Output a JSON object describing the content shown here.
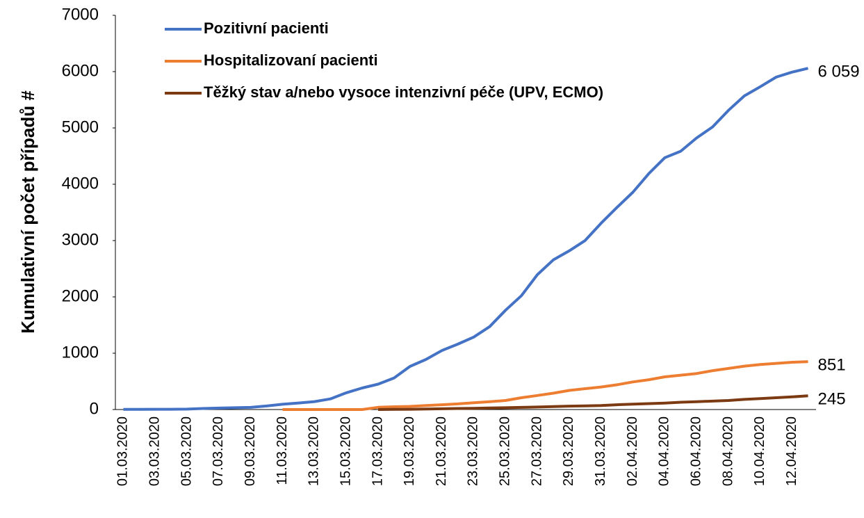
{
  "chart_data": {
    "type": "line",
    "ylabel": "Kumulativní počet případů #",
    "categories": [
      "01.03.2020",
      null,
      "03.03.2020",
      null,
      "05.03.2020",
      null,
      "07.03.2020",
      null,
      "09.03.2020",
      null,
      "11.03.2020",
      null,
      "13.03.2020",
      null,
      "15.03.2020",
      null,
      "17.03.2020",
      null,
      "19.03.2020",
      null,
      "21.03.2020",
      null,
      "23.03.2020",
      null,
      "25.03.2020",
      null,
      "27.03.2020",
      null,
      "29.03.2020",
      null,
      "31.03.2020",
      null,
      "02.04.2020",
      null,
      "04.04.2020",
      null,
      "06.04.2020",
      null,
      "08.04.2020",
      null,
      "10.04.2020",
      null,
      "12.04.2020",
      null
    ],
    "series": [
      {
        "name": "Pozitivní pacienti",
        "color": "#4472c4",
        "values": [
          3,
          3,
          5,
          5,
          8,
          19,
          26,
          32,
          38,
          63,
          94,
          116,
          141,
          189,
          298,
          383,
          450,
          560,
          765,
          889,
          1047,
          1161,
          1287,
          1472,
          1763,
          2022,
          2395,
          2657,
          2817,
          3001,
          3308,
          3589,
          3858,
          4190,
          4472,
          4587,
          4822,
          5017,
          5312,
          5569,
          5732,
          5902,
          5991,
          6059
        ],
        "value_labels": [
          null,
          null,
          null,
          null,
          null,
          null,
          null,
          null,
          null,
          null,
          null,
          null,
          null,
          null,
          null,
          null,
          null,
          null,
          null,
          null,
          null,
          null,
          null,
          null,
          null,
          null,
          null,
          null,
          null,
          null,
          null,
          null,
          null,
          null,
          null,
          null,
          null,
          null,
          null,
          null,
          null,
          null,
          null,
          "6 059"
        ]
      },
      {
        "name": "Hospitalizovaní pacienti",
        "color": "#ed7d31",
        "values": [
          null,
          null,
          null,
          null,
          null,
          null,
          null,
          null,
          null,
          null,
          0,
          0,
          0,
          0,
          0,
          0,
          40,
          50,
          55,
          70,
          85,
          100,
          120,
          140,
          160,
          210,
          250,
          290,
          340,
          370,
          400,
          440,
          490,
          530,
          580,
          610,
          640,
          690,
          730,
          770,
          800,
          820,
          840,
          851
        ],
        "value_labels": [
          null,
          null,
          null,
          null,
          null,
          null,
          null,
          null,
          null,
          null,
          null,
          null,
          null,
          null,
          null,
          null,
          null,
          null,
          null,
          null,
          null,
          null,
          null,
          null,
          null,
          null,
          null,
          null,
          null,
          null,
          null,
          null,
          null,
          null,
          null,
          null,
          null,
          null,
          null,
          null,
          null,
          null,
          null,
          "851"
        ]
      },
      {
        "name": "Těžký stav a/nebo vysoce intenzivní péče (UPV, ECMO)",
        "color": "#7b3a12",
        "values": [
          null,
          null,
          null,
          null,
          null,
          null,
          null,
          null,
          null,
          null,
          null,
          null,
          null,
          null,
          null,
          null,
          0,
          2,
          5,
          10,
          14,
          18,
          22,
          28,
          32,
          38,
          45,
          52,
          60,
          66,
          72,
          85,
          95,
          105,
          115,
          130,
          140,
          150,
          160,
          180,
          195,
          210,
          225,
          245
        ],
        "value_labels": [
          null,
          null,
          null,
          null,
          null,
          null,
          null,
          null,
          null,
          null,
          null,
          null,
          null,
          null,
          null,
          null,
          null,
          null,
          null,
          null,
          null,
          null,
          null,
          null,
          null,
          null,
          null,
          null,
          null,
          null,
          null,
          null,
          null,
          null,
          null,
          null,
          null,
          null,
          null,
          null,
          null,
          null,
          null,
          "245"
        ]
      }
    ],
    "ylim": [
      0,
      7000
    ],
    "yticks": [
      0,
      1000,
      2000,
      3000,
      4000,
      5000,
      6000,
      7000
    ],
    "grid": false,
    "legend": "top"
  }
}
